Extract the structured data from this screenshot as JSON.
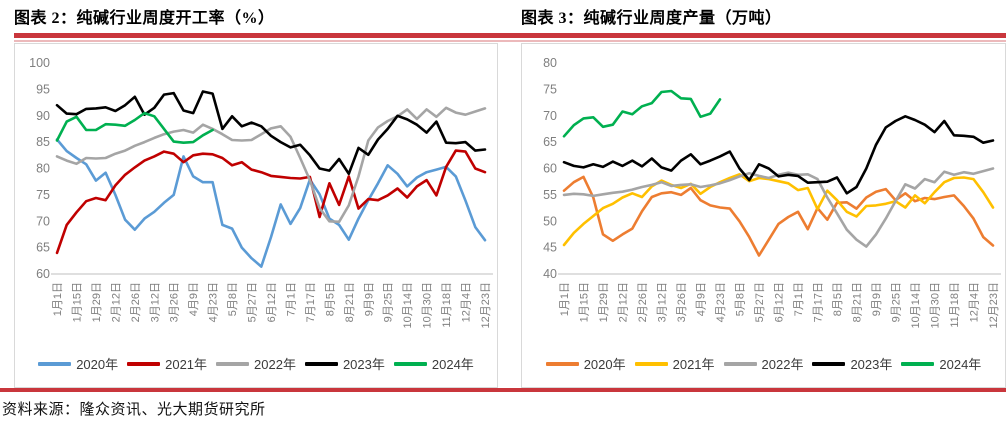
{
  "page": {
    "figure2_title": "图表 2：纯碱行业周度开工率（%）",
    "figure3_title": "图表 3：纯碱行业周度产量（万吨）",
    "source_text": "资料来源：隆众资讯、光大期货研究所",
    "accent_color": "#C9363C",
    "card_border_color": "#D9D9D9",
    "axis_text_color": "#7F7F7F",
    "axis_line_color": "#BFBFBF"
  },
  "chart_data": [
    {
      "type": "line",
      "title": "纯碱行业周度开工率（%）",
      "xlabel": "",
      "ylabel": "",
      "ylim": [
        60,
        100
      ],
      "yticks": [
        60,
        65,
        70,
        75,
        80,
        85,
        90,
        95,
        100
      ],
      "grid": false,
      "legend_position": "bottom",
      "x_tick_labels": [
        "1月1日",
        "1月15日",
        "1月29日",
        "2月12日",
        "2月26日",
        "3月12日",
        "3月26日",
        "4月9日",
        "4月23日",
        "5月8日",
        "5月27日",
        "6月12日",
        "7月1日",
        "7月17日",
        "8月5日",
        "8月21日",
        "9月9日",
        "9月25日",
        "10月14日",
        "10月30日",
        "11月18日",
        "12月4日",
        "12月23日"
      ],
      "series": [
        {
          "name": "2020年",
          "color": "#5B9BD5",
          "values": [
            85.5,
            83.3,
            82.0,
            80.8,
            77.7,
            79.2,
            75.0,
            70.3,
            68.4,
            70.5,
            71.8,
            73.5,
            75.0,
            82.3,
            78.5,
            77.4,
            77.4,
            69.3,
            68.6,
            65.0,
            63.0,
            61.4,
            67.0,
            73.2,
            69.5,
            72.5,
            77.9,
            75.1,
            70.5,
            69.3,
            66.5,
            70.5,
            74.0,
            77.2,
            80.6,
            79.0,
            76.6,
            78.3,
            79.3,
            79.8,
            80.3,
            78.5,
            73.9,
            68.9,
            66.4
          ]
        },
        {
          "name": "2021年",
          "color": "#C00000",
          "values": [
            64.0,
            69.3,
            71.7,
            73.8,
            74.4,
            74.0,
            76.8,
            78.8,
            80.2,
            81.5,
            82.3,
            83.2,
            82.8,
            81.2,
            82.5,
            82.8,
            82.7,
            82.0,
            80.6,
            81.2,
            79.8,
            79.3,
            78.6,
            78.4,
            78.2,
            78.1,
            78.4,
            70.8,
            77.2,
            73.1,
            78.5,
            72.4,
            74.2,
            74.0,
            74.9,
            76.2,
            74.5,
            76.6,
            77.8,
            74.9,
            80.3,
            83.4,
            83.2,
            80.0,
            79.3
          ]
        },
        {
          "name": "2022年",
          "color": "#A5A5A5",
          "values": [
            82.3,
            81.5,
            80.9,
            82.0,
            81.9,
            82.0,
            82.8,
            83.4,
            84.3,
            85.0,
            85.8,
            86.5,
            87.0,
            87.3,
            86.8,
            88.3,
            87.5,
            86.5,
            85.4,
            85.3,
            85.4,
            86.5,
            87.6,
            88.0,
            86.0,
            82.0,
            77.8,
            72.5,
            70.0,
            69.9,
            73.0,
            78.5,
            85.3,
            87.8,
            89.0,
            89.9,
            91.2,
            89.4,
            91.2,
            89.8,
            91.5,
            90.6,
            90.2,
            90.8,
            91.4
          ]
        },
        {
          "name": "2023年",
          "color": "#000000",
          "values": [
            92.0,
            90.4,
            90.3,
            91.3,
            91.4,
            91.6,
            90.9,
            92.0,
            93.6,
            90.2,
            91.5,
            94.0,
            94.3,
            91.0,
            90.5,
            94.6,
            94.2,
            87.5,
            89.9,
            88.0,
            88.7,
            88.0,
            86.2,
            85.0,
            84.0,
            84.5,
            82.5,
            80.0,
            79.6,
            81.8,
            79.0,
            83.9,
            82.6,
            85.5,
            87.5,
            90.0,
            89.3,
            88.3,
            86.8,
            88.9,
            84.9,
            84.8,
            85.0,
            83.4,
            83.6
          ]
        },
        {
          "name": "2024年",
          "color": "#00B050",
          "values": [
            85.3,
            88.9,
            89.8,
            87.3,
            87.3,
            88.4,
            88.3,
            88.1,
            89.2,
            90.5,
            89.9,
            87.5,
            85.1,
            84.9,
            85.0,
            86.3,
            87.3
          ]
        }
      ]
    },
    {
      "type": "line",
      "title": "纯碱行业周度产量（万吨）",
      "xlabel": "",
      "ylabel": "",
      "ylim": [
        40,
        80
      ],
      "yticks": [
        40,
        45,
        50,
        55,
        60,
        65,
        70,
        75,
        80
      ],
      "grid": false,
      "legend_position": "bottom",
      "x_tick_labels": [
        "1月1日",
        "1月15日",
        "1月29日",
        "2月12日",
        "2月26日",
        "3月12日",
        "3月26日",
        "4月9日",
        "4月23日",
        "5月8日",
        "5月27日",
        "6月12日",
        "7月1日",
        "7月17日",
        "8月5日",
        "8月21日",
        "9月9日",
        "9月25日",
        "10月14日",
        "10月30日",
        "11月18日",
        "12月4日",
        "12月23日"
      ],
      "series": [
        {
          "name": "2020年",
          "color": "#ED7D31",
          "values": [
            55.8,
            57.4,
            58.4,
            54.5,
            47.5,
            46.3,
            47.5,
            48.6,
            51.9,
            54.6,
            55.3,
            55.5,
            55.0,
            56.3,
            54.0,
            53.0,
            52.6,
            52.4,
            50.0,
            47.0,
            43.5,
            46.5,
            49.5,
            50.8,
            51.8,
            48.5,
            52.5,
            50.3,
            53.5,
            53.6,
            52.4,
            54.5,
            55.6,
            56.1,
            54.0,
            55.3,
            53.8,
            54.4,
            54.2,
            54.6,
            54.9,
            52.9,
            50.5,
            47.0,
            45.4
          ]
        },
        {
          "name": "2021年",
          "color": "#FFC000",
          "values": [
            45.5,
            47.8,
            49.5,
            51.0,
            52.5,
            53.3,
            54.5,
            55.3,
            54.6,
            56.6,
            57.7,
            56.9,
            56.3,
            57.1,
            55.2,
            56.5,
            57.4,
            58.2,
            58.9,
            57.6,
            58.2,
            58.0,
            57.6,
            57.2,
            55.9,
            56.3,
            52.3,
            55.8,
            54.0,
            51.8,
            50.9,
            52.9,
            53.0,
            53.3,
            53.8,
            52.6,
            54.9,
            53.4,
            55.5,
            57.4,
            58.2,
            58.3,
            58.0,
            55.5,
            52.6
          ]
        },
        {
          "name": "2022年",
          "color": "#A5A5A5",
          "values": [
            55.0,
            55.2,
            55.1,
            54.8,
            55.1,
            55.4,
            55.6,
            56.0,
            56.5,
            56.9,
            57.4,
            56.7,
            56.9,
            57.0,
            56.5,
            56.8,
            57.2,
            57.8,
            58.5,
            59.1,
            58.6,
            58.2,
            58.8,
            59.2,
            58.8,
            58.9,
            58.0,
            54.5,
            51.5,
            48.4,
            46.5,
            45.2,
            47.5,
            50.5,
            53.8,
            57.0,
            56.2,
            58.0,
            57.4,
            59.4,
            58.8,
            59.3,
            59.0,
            59.5,
            60.0
          ]
        },
        {
          "name": "2023年",
          "color": "#000000",
          "values": [
            61.2,
            60.5,
            60.2,
            60.8,
            60.3,
            61.3,
            60.5,
            61.5,
            60.4,
            61.9,
            60.2,
            59.6,
            61.5,
            62.7,
            60.8,
            61.5,
            62.3,
            63.2,
            60.0,
            57.8,
            60.8,
            60.0,
            58.5,
            58.8,
            58.6,
            57.3,
            57.4,
            57.5,
            58.3,
            55.3,
            56.5,
            60.0,
            64.5,
            67.8,
            69.0,
            69.9,
            69.2,
            68.3,
            66.9,
            69.0,
            66.3,
            66.2,
            66.0,
            64.9,
            65.3
          ]
        },
        {
          "name": "2024年",
          "color": "#00B050",
          "values": [
            66.1,
            68.2,
            69.5,
            69.7,
            67.9,
            68.3,
            70.8,
            70.3,
            71.8,
            72.4,
            74.5,
            74.7,
            73.3,
            73.2,
            69.8,
            70.4,
            73.1
          ]
        }
      ]
    }
  ]
}
